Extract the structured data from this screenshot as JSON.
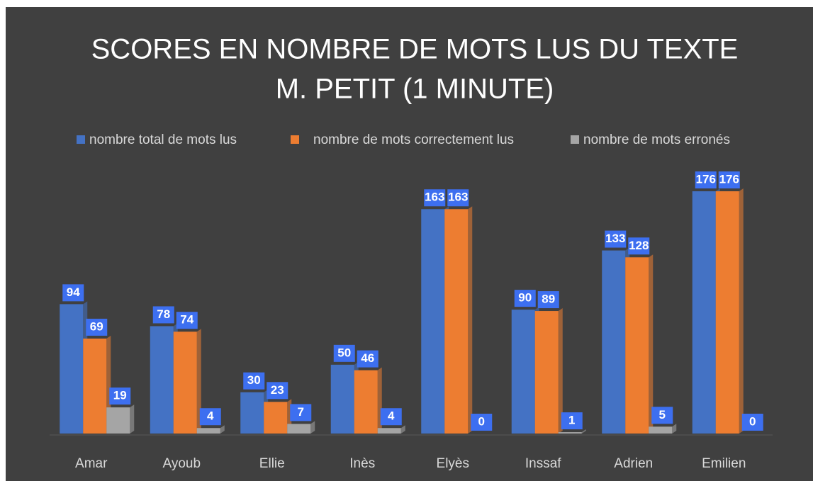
{
  "chart_data": {
    "type": "bar",
    "title": [
      "SCORES EN NOMBRE DE MOTS LUS DU TEXTE",
      "M. PETIT (1 MINUTE)"
    ],
    "categories": [
      "Amar",
      "Ayoub",
      "Ellie",
      "Inès",
      "Elyès",
      "Inssaf",
      "Adrien",
      "Emilien"
    ],
    "series": [
      {
        "name": "nombre total de mots lus",
        "color": "#4472c4",
        "values": [
          94,
          78,
          30,
          50,
          163,
          90,
          133,
          176
        ]
      },
      {
        "name": "nombre de mots correctement lus",
        "color": "#ed7d31",
        "values": [
          69,
          74,
          23,
          46,
          163,
          89,
          128,
          176
        ]
      },
      {
        "name": "nombre de mots erronés",
        "color": "#a5a5a5",
        "values": [
          19,
          4,
          7,
          4,
          0,
          1,
          5,
          0
        ]
      }
    ],
    "legend": "top"
  }
}
